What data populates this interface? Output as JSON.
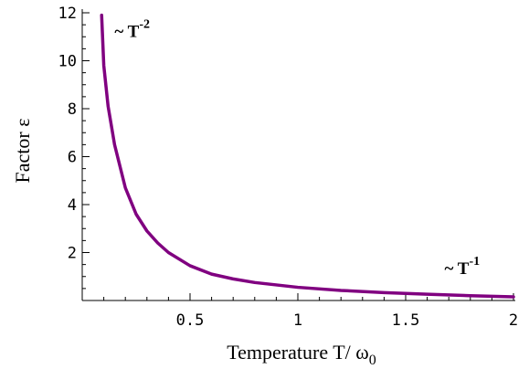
{
  "chart_data": {
    "type": "line",
    "title": "",
    "xlabel": "Temperature T/ ω",
    "xlabel_sub": "0",
    "ylabel": "Factor ε",
    "xlim": [
      0,
      2
    ],
    "ylim": [
      0,
      12
    ],
    "x_ticks": [
      "0.5",
      "1",
      "1.5",
      "2"
    ],
    "x_tick_values": [
      0.5,
      1,
      1.5,
      2
    ],
    "y_ticks": [
      "2",
      "4",
      "6",
      "8",
      "10",
      "12"
    ],
    "y_tick_values": [
      2,
      4,
      6,
      8,
      10,
      12
    ],
    "grid": false,
    "series": [
      {
        "color": "#800080",
        "points": [
          [
            0.09,
            11.9
          ],
          [
            0.1,
            9.8
          ],
          [
            0.12,
            8.1
          ],
          [
            0.15,
            6.5
          ],
          [
            0.2,
            4.7
          ],
          [
            0.25,
            3.6
          ],
          [
            0.3,
            2.9
          ],
          [
            0.35,
            2.4
          ],
          [
            0.4,
            2.0
          ],
          [
            0.5,
            1.45
          ],
          [
            0.6,
            1.1
          ],
          [
            0.7,
            0.9
          ],
          [
            0.8,
            0.75
          ],
          [
            1.0,
            0.55
          ],
          [
            1.2,
            0.42
          ],
          [
            1.4,
            0.33
          ],
          [
            1.6,
            0.26
          ],
          [
            1.8,
            0.2
          ],
          [
            2.0,
            0.15
          ]
        ]
      }
    ],
    "annotations": [
      {
        "text": "~ T",
        "superscript": "-2",
        "x": 0.15,
        "y": 11.0
      },
      {
        "text": "~ T",
        "superscript": "-1",
        "x": 1.68,
        "y": 1.1
      }
    ]
  }
}
